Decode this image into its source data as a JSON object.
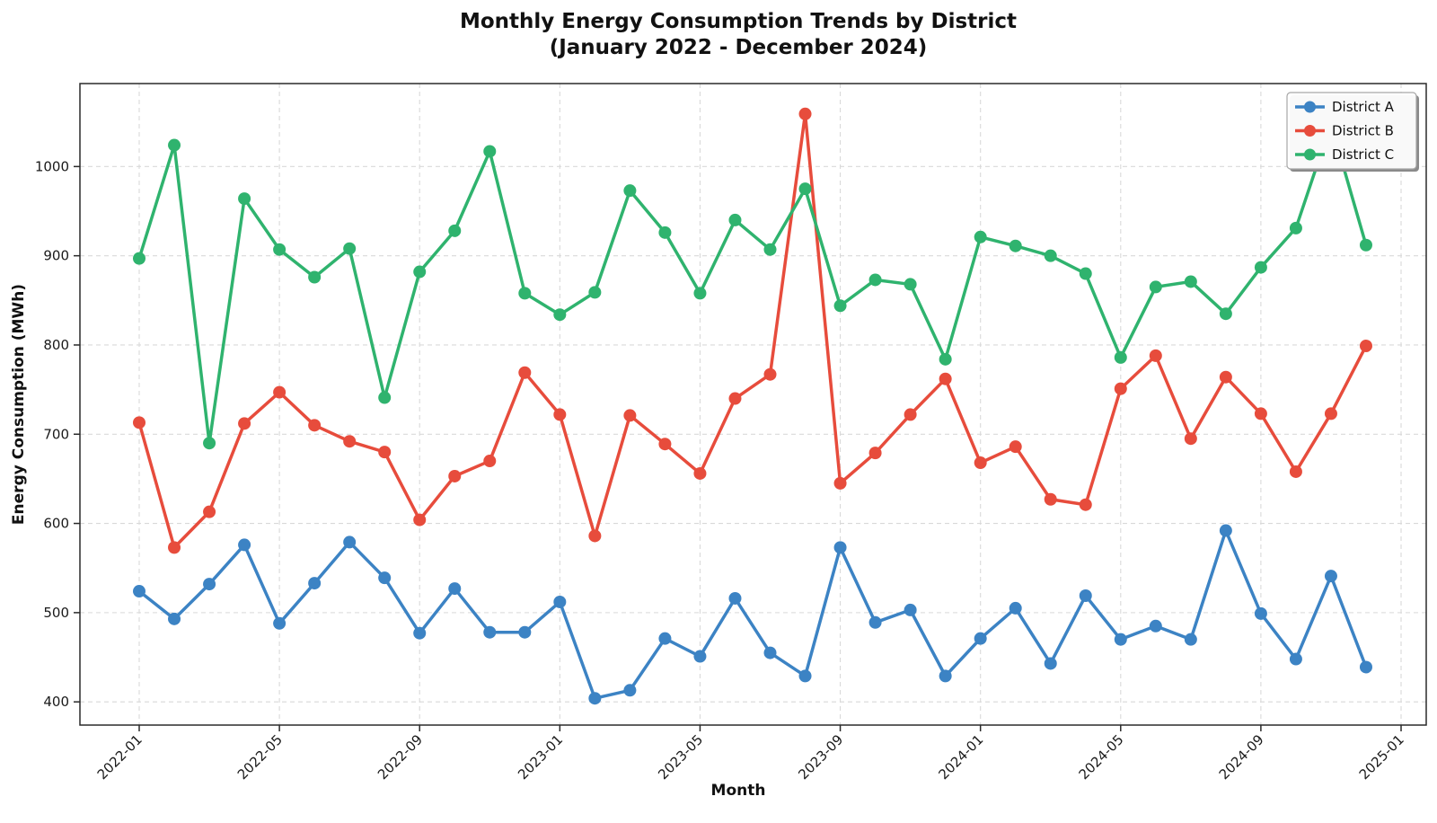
{
  "title": {
    "line1": "Monthly Energy Consumption Trends by District",
    "line2": "(January 2022 - December 2024)"
  },
  "axes": {
    "xlabel": "Month",
    "ylabel": "Energy Consumption (MWh)"
  },
  "legend": {
    "position": "upper-right",
    "entries": [
      "District A",
      "District B",
      "District C"
    ]
  },
  "colors": {
    "district_a": "#3c83c4",
    "district_b": "#e74c3c",
    "district_c": "#2fb36e",
    "grid": "#d9d9d9",
    "spine": "#2a2a2a",
    "background": "#ffffff",
    "text": "#111111",
    "legend_border": "#a6a6a6",
    "legend_shadow": "#8a8a8a"
  },
  "chart_data": {
    "type": "line",
    "title": "Monthly Energy Consumption Trends by District (January 2022 - December 2024)",
    "xlabel": "Month",
    "ylabel": "Energy Consumption (MWh)",
    "grid": true,
    "legend_position": "upper right",
    "x": [
      "2022-01",
      "2022-02",
      "2022-03",
      "2022-04",
      "2022-05",
      "2022-06",
      "2022-07",
      "2022-08",
      "2022-09",
      "2022-10",
      "2022-11",
      "2022-12",
      "2023-01",
      "2023-02",
      "2023-03",
      "2023-04",
      "2023-05",
      "2023-06",
      "2023-07",
      "2023-08",
      "2023-09",
      "2023-10",
      "2023-11",
      "2023-12",
      "2024-01",
      "2024-02",
      "2024-03",
      "2024-04",
      "2024-05",
      "2024-06",
      "2024-07",
      "2024-08",
      "2024-09",
      "2024-10",
      "2024-11",
      "2024-12"
    ],
    "series": [
      {
        "name": "District A",
        "color": "#3c83c4",
        "values": [
          524,
          493,
          532,
          576,
          488,
          533,
          579,
          539,
          477,
          527,
          478,
          478,
          512,
          404,
          413,
          471,
          451,
          516,
          455,
          429,
          573,
          489,
          503,
          429,
          471,
          505,
          443,
          519,
          470,
          485,
          470,
          592,
          499,
          448,
          541,
          439
        ]
      },
      {
        "name": "District B",
        "color": "#e74c3c",
        "values": [
          713,
          573,
          613,
          712,
          747,
          710,
          692,
          680,
          604,
          653,
          670,
          769,
          722,
          586,
          721,
          689,
          656,
          740,
          767,
          1059,
          645,
          679,
          722,
          762,
          668,
          686,
          627,
          621,
          751,
          788,
          695,
          764,
          723,
          658,
          723,
          799
        ]
      },
      {
        "name": "District C",
        "color": "#2fb36e",
        "values": [
          897,
          1024,
          690,
          964,
          907,
          876,
          908,
          741,
          882,
          928,
          1017,
          858,
          834,
          859,
          973,
          926,
          858,
          940,
          907,
          975,
          844,
          873,
          868,
          784,
          921,
          911,
          900,
          880,
          786,
          865,
          871,
          835,
          887,
          931,
          1048,
          912
        ]
      }
    ],
    "xtick_labels": [
      "2022-01",
      "2022-05",
      "2022-09",
      "2023-01",
      "2023-05",
      "2023-09",
      "2024-01",
      "2024-05",
      "2024-09",
      "2025-01"
    ],
    "xtick_month_index": [
      0,
      4,
      8,
      12,
      16,
      20,
      24,
      28,
      32,
      36
    ],
    "xtick_rotation": 45,
    "yticks": [
      400,
      500,
      600,
      700,
      800,
      900,
      1000
    ],
    "ylim": [
      374,
      1093
    ],
    "xlim_months": [
      -1.69,
      36.72
    ]
  }
}
